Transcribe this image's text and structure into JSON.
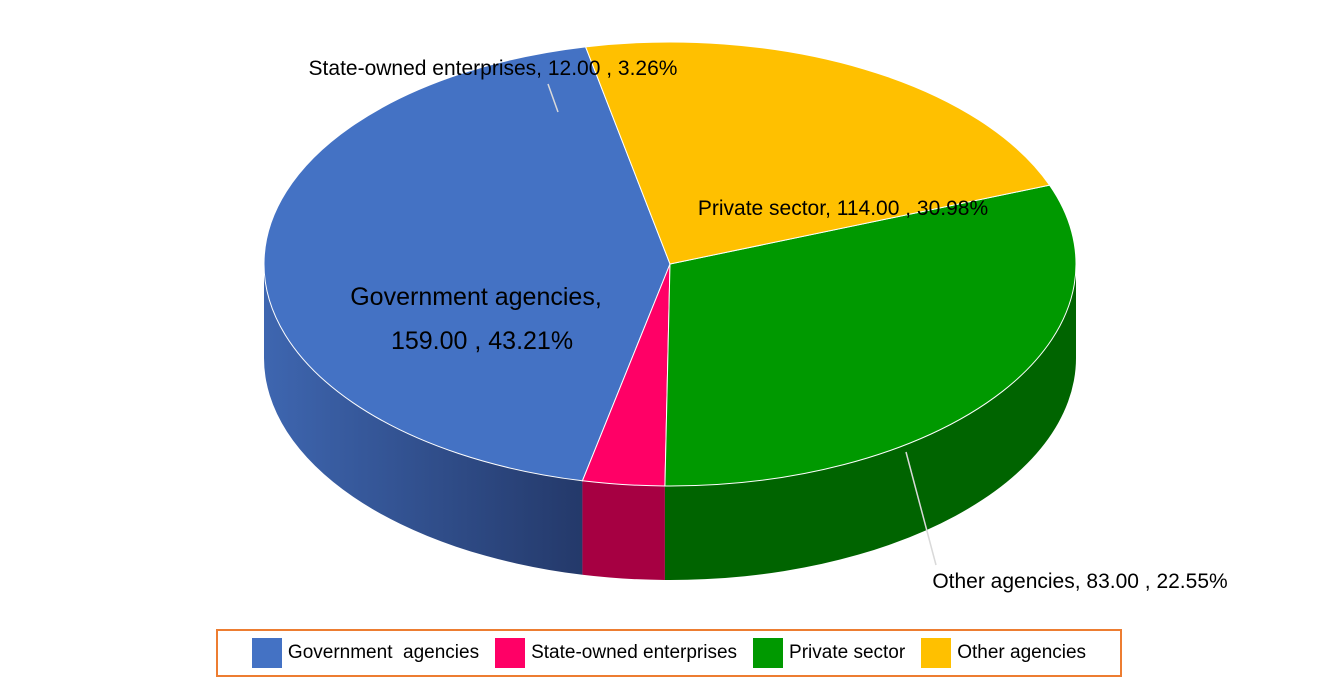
{
  "chart_data": {
    "type": "pie",
    "style": "3d",
    "slices": [
      {
        "name": "Government agencies",
        "value": 159.0,
        "percent": 43.21,
        "color": "#4472C4",
        "side_color": "#2F4F87",
        "label_lines": [
          "Government agencies,",
          "159.00 , 43.21%"
        ]
      },
      {
        "name": "State-owned enterprises",
        "value": 12.0,
        "percent": 3.26,
        "color": "#FF0066",
        "side_color": "#A60042",
        "label_lines": [
          "State-owned enterprises, 12.00 , 3.26%"
        ]
      },
      {
        "name": "Private sector",
        "value": 114.0,
        "percent": 30.98,
        "color": "#009900",
        "side_color": "#006400",
        "label_lines": [
          "Private sector, 114.00 , 30.98%"
        ]
      },
      {
        "name": "Other agencies",
        "value": 83.0,
        "percent": 22.55,
        "color": "#FFC000",
        "side_color": "#7F5F00",
        "label_lines": [
          "Other agencies, 83.00 , 22.55%"
        ]
      }
    ],
    "legend": {
      "position": "bottom",
      "border_color": "#ED7D31",
      "items": [
        {
          "label": "Government  agencies",
          "color": "#4472C4"
        },
        {
          "label": "State-owned enterprises",
          "color": "#FF0066"
        },
        {
          "label": "Private sector",
          "color": "#009900"
        },
        {
          "label": "Other agencies",
          "color": "#FFC000"
        }
      ]
    }
  }
}
